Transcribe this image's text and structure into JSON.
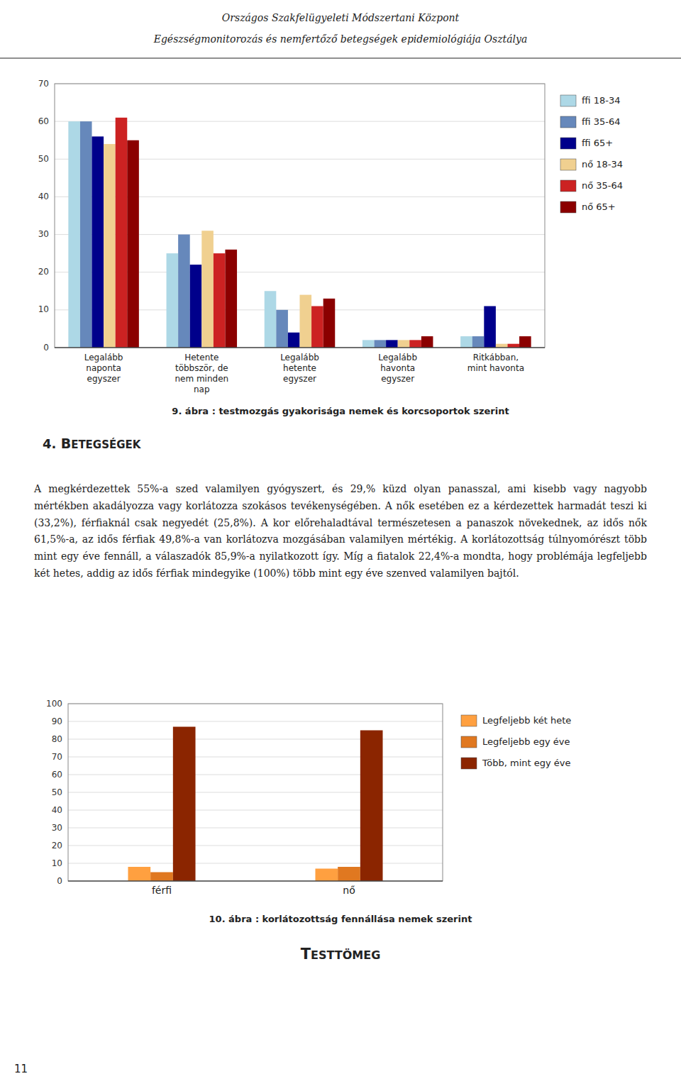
{
  "page_title": [
    "Országos Szakfelügyeleti Módszertani Központ",
    "Egészségmonitorozás és nemfertőző betegségek epidemiológiája Osztálya"
  ],
  "section_number": "4.",
  "section_title": "BETEGSÉGEK",
  "body_text": "A megkérdezettek 55%-a szed valamilyen gyógyszert, és 29,% küzd olyan panasszal, ami kisebb vagy nagyobb mértékben akadályozza vagy korlátozza szokásos tevékenységében. A nők esetében ez a kérdezettek harmadát teszi ki (33,2%), férfiaknál csak negyedét (25,8%). A kor előrehaladtával természetesen a panaszok növekednek, az idős nők 61,5%-a, az idős férfiak 49,8%-a van korlátozva mozgásában valamilyen mértékig. A korlátozottság túlnyomórészt több mint egy éve fennáll, a válaszadók 85,9%-a nyilatkozott így. Míg a fiatalok 22,4%-a mondta, hogy problémája legfeljebb két hetes, addig az idős férfiak mindegyike (100%) több mint egy éve szenved valamilyen bajtól.",
  "footer_title": "TESTTÖMEG",
  "page_number": "11",
  "chart_data": [
    {
      "type": "bar",
      "title": "9. ábra : testmozgás gyakorisága nemek és korcsoportok szerint",
      "categories": [
        "Legalább\nnaponta\negyszer",
        "Hetente\ntöbbször, de\nnem minden\nnap",
        "Legalább\nhetente\negyszer",
        "Legalább\nhavonta\negyszer",
        "Ritkábban,\nmint havonta"
      ],
      "series": [
        {
          "name": "ffi 18-34",
          "color": "#add8e6",
          "values": [
            60,
            25,
            15,
            2,
            3
          ]
        },
        {
          "name": "ffi 35-64",
          "color": "#6688bb",
          "values": [
            60,
            30,
            10,
            2,
            3
          ]
        },
        {
          "name": "ffi 65+",
          "color": "#00008b",
          "values": [
            56,
            22,
            4,
            2,
            11
          ]
        },
        {
          "name": "nő 18-34",
          "color": "#f0d090",
          "values": [
            54,
            31,
            14,
            2,
            1
          ]
        },
        {
          "name": "nő 35-64",
          "color": "#cc2222",
          "values": [
            61,
            25,
            11,
            2,
            1
          ]
        },
        {
          "name": "nő 65+",
          "color": "#8b0000",
          "values": [
            55,
            26,
            13,
            3,
            3
          ]
        }
      ],
      "ylim": [
        0,
        70
      ],
      "yticks": [
        0,
        10,
        20,
        30,
        40,
        50,
        60,
        70
      ],
      "grid": true,
      "legend": "right"
    },
    {
      "type": "bar",
      "title": "10. ábra : korlátozottság fennállása nemek szerint",
      "categories": [
        "férfi",
        "nő"
      ],
      "series": [
        {
          "name": "Legfeljebb két hete",
          "color": "#ffa040",
          "values": [
            8,
            7
          ]
        },
        {
          "name": "Legfeljebb egy éve",
          "color": "#e07820",
          "values": [
            5,
            8
          ]
        },
        {
          "name": "Több, mint egy éve",
          "color": "#8b2500",
          "values": [
            87,
            85
          ]
        }
      ],
      "ylim": [
        0,
        100
      ],
      "yticks": [
        0,
        10,
        20,
        30,
        40,
        50,
        60,
        70,
        80,
        90,
        100
      ],
      "grid": true,
      "legend": "right"
    }
  ]
}
